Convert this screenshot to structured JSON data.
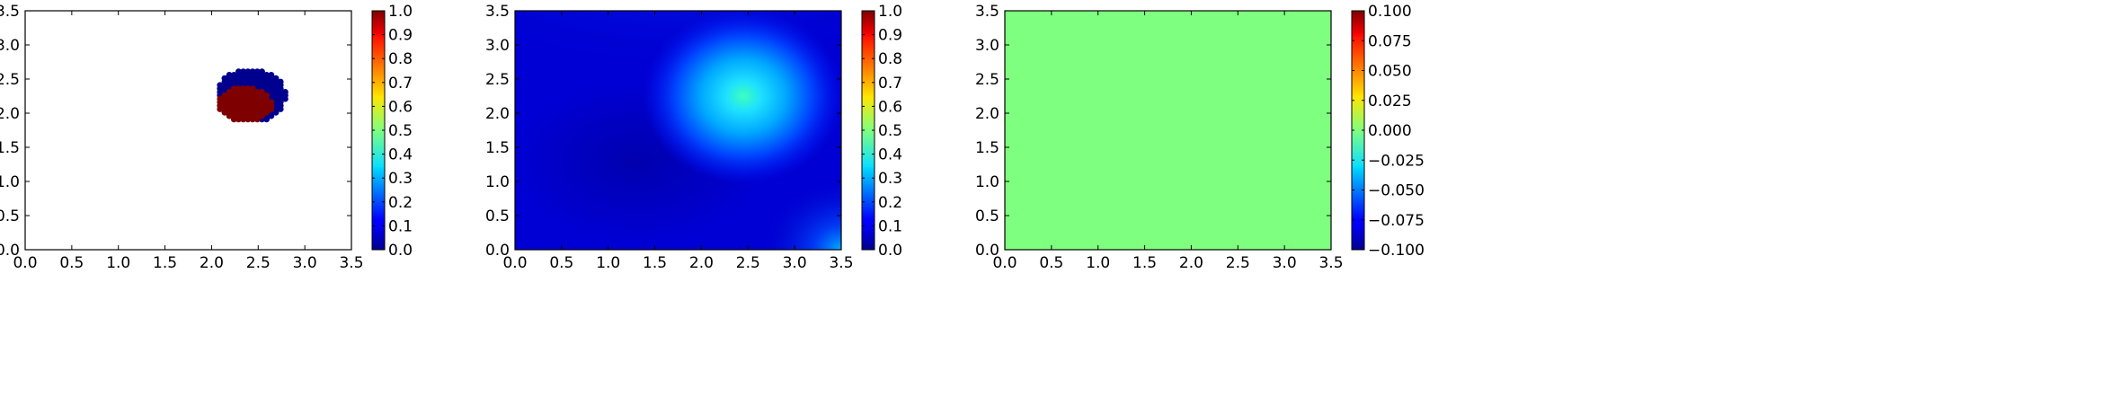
{
  "chart_data": [
    {
      "type": "scatter",
      "xlim": [
        0,
        3.5
      ],
      "ylim": [
        0,
        3.5
      ],
      "x_ticks": [
        "0.0",
        "0.5",
        "1.0",
        "1.5",
        "2.0",
        "2.5",
        "3.0",
        "3.5"
      ],
      "y_ticks": [
        "0.0",
        "0.5",
        "1.0",
        "1.5",
        "2.0",
        "2.5",
        "3.0",
        "3.5"
      ],
      "grid": false,
      "colormap": "jet",
      "colorbar": {
        "min": 0,
        "max": 1,
        "ticks": [
          "0.0",
          "0.1",
          "0.2",
          "0.3",
          "0.4",
          "0.5",
          "0.6",
          "0.7",
          "0.8",
          "0.9",
          "1.0"
        ]
      },
      "point_spacing": 0.05,
      "outer_region": {
        "value": 0.0,
        "center": [
          2.42,
          2.25
        ],
        "radii": [
          0.38,
          0.39
        ],
        "color": "#00008f"
      },
      "inner_region": {
        "value": 1.0,
        "center": [
          2.35,
          2.12
        ],
        "radii": [
          0.3,
          0.26
        ],
        "color": "#7f0000"
      }
    },
    {
      "type": "heatmap",
      "xlim": [
        0,
        3.5
      ],
      "ylim": [
        0,
        3.5
      ],
      "x_ticks": [
        "0.0",
        "0.5",
        "1.0",
        "1.5",
        "2.0",
        "2.5",
        "3.0",
        "3.5"
      ],
      "y_ticks": [
        "0.0",
        "0.5",
        "1.0",
        "1.5",
        "2.0",
        "2.5",
        "3.0",
        "3.5"
      ],
      "grid": false,
      "colormap": "jet",
      "colorbar": {
        "min": 0,
        "max": 1,
        "ticks": [
          "0.0",
          "0.1",
          "0.2",
          "0.3",
          "0.4",
          "0.5",
          "0.6",
          "0.7",
          "0.8",
          "0.9",
          "1.0"
        ]
      },
      "background_value": 0.14,
      "peak": {
        "center": [
          2.45,
          2.25
        ],
        "value": 0.46
      },
      "corner_highlight": {
        "location": "bottom-right",
        "value": 0.3
      }
    },
    {
      "type": "heatmap",
      "xlim": [
        0,
        3.5
      ],
      "ylim": [
        0,
        3.5
      ],
      "x_ticks": [
        "0.0",
        "0.5",
        "1.0",
        "1.5",
        "2.0",
        "2.5",
        "3.0",
        "3.5"
      ],
      "y_ticks": [
        "0.0",
        "0.5",
        "1.0",
        "1.5",
        "2.0",
        "2.5",
        "3.0",
        "3.5"
      ],
      "grid": false,
      "colormap": "jet",
      "colorbar": {
        "min": -0.1,
        "max": 0.1,
        "ticks": [
          "−0.100",
          "−0.075",
          "−0.050",
          "−0.025",
          "0.000",
          "0.025",
          "0.050",
          "0.075",
          "0.100"
        ]
      },
      "uniform_value": 0.0,
      "fill_color": "#7fff7f"
    }
  ]
}
